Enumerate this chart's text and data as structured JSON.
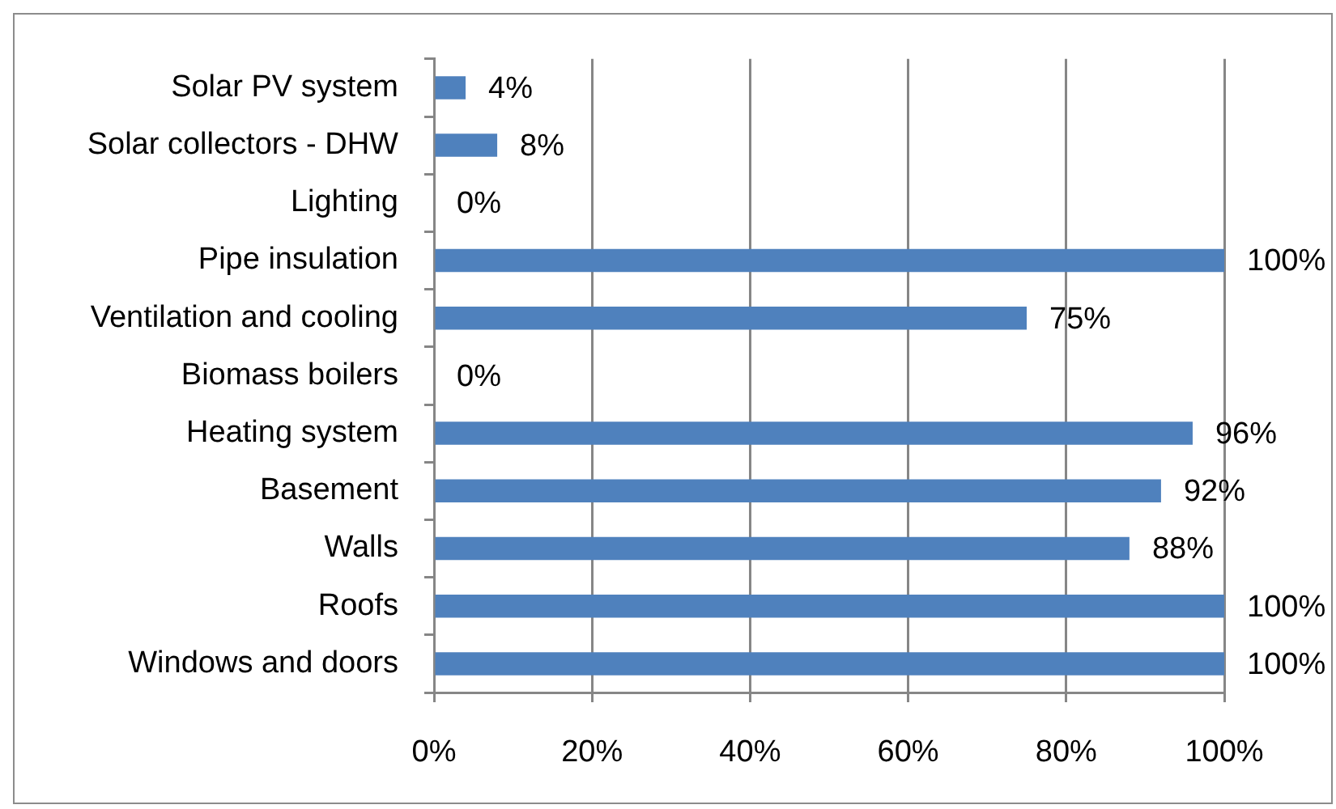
{
  "chart_data": {
    "type": "bar",
    "orientation": "horizontal",
    "categories": [
      "Solar PV system",
      "Solar collectors - DHW",
      "Lighting",
      "Pipe insulation",
      "Ventilation and cooling",
      "Biomass boilers",
      "Heating system",
      "Basement",
      "Walls",
      "Roofs",
      "Windows and doors"
    ],
    "values": [
      4,
      8,
      0,
      100,
      75,
      0,
      96,
      92,
      88,
      100,
      100
    ],
    "value_labels": [
      "4%",
      "8%",
      "0%",
      "100%",
      "75%",
      "0%",
      "96%",
      "92%",
      "88%",
      "100%",
      "100%"
    ],
    "color": "#4f81bd",
    "xlim": [
      0,
      100
    ],
    "xticks": [
      {
        "value": 0,
        "label": "0%"
      },
      {
        "value": 20,
        "label": "20%"
      },
      {
        "value": 40,
        "label": "40%"
      },
      {
        "value": 60,
        "label": "60%"
      },
      {
        "value": 80,
        "label": "80%"
      },
      {
        "value": 100,
        "label": "100%"
      }
    ],
    "grid": "x"
  }
}
